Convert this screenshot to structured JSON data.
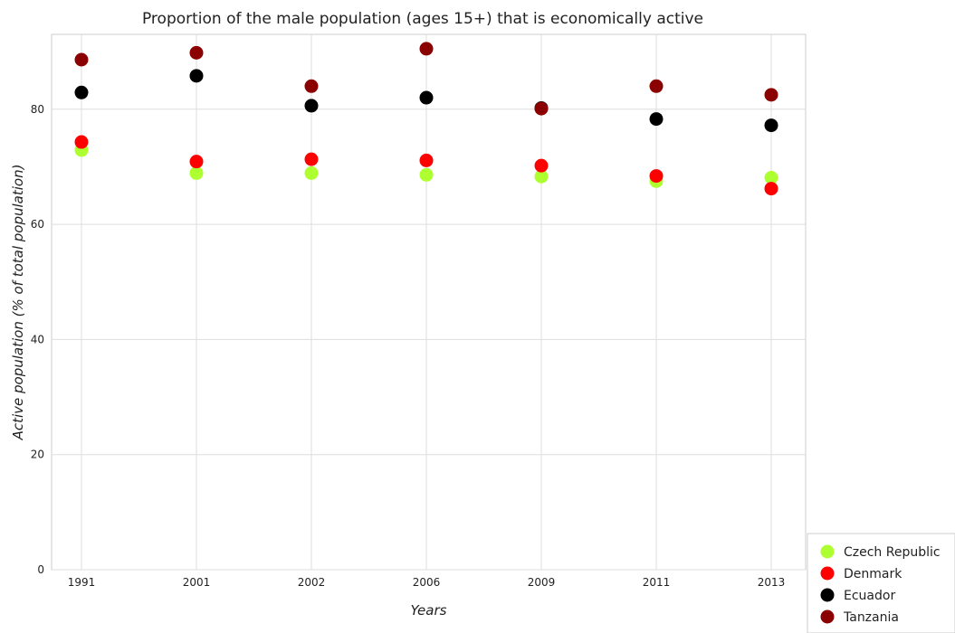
{
  "chart_data": {
    "type": "scatter",
    "title": "Proportion of the male population (ages 15+) that is economically active",
    "xlabel": "Years",
    "ylabel": "Active population (% of total population)",
    "categories": [
      "1991",
      "2001",
      "2002",
      "2006",
      "2009",
      "2011",
      "2013"
    ],
    "yticks": [
      0,
      20,
      40,
      60,
      80
    ],
    "ylim": [
      0,
      93
    ],
    "grid": true,
    "legend_position": "bottom-right",
    "series": [
      {
        "name": "Czech Republic",
        "color": "#adff2f",
        "values": [
          72.9,
          68.9,
          68.9,
          68.6,
          68.3,
          67.5,
          68.1
        ]
      },
      {
        "name": "Denmark",
        "color": "#ff0000",
        "values": [
          74.3,
          70.9,
          71.3,
          71.1,
          70.2,
          68.4,
          66.2
        ]
      },
      {
        "name": "Ecuador",
        "color": "#000000",
        "values": [
          82.9,
          85.8,
          80.6,
          82.0,
          80.2,
          78.3,
          77.2
        ]
      },
      {
        "name": "Tanzania",
        "color": "#8b0000",
        "values": [
          88.6,
          89.8,
          84.0,
          90.5,
          80.1,
          84.0,
          82.5
        ]
      }
    ]
  }
}
